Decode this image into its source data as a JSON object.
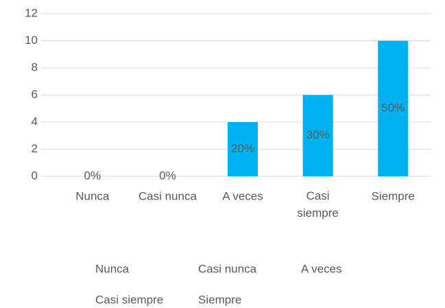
{
  "chart_data": {
    "type": "bar",
    "categories": [
      "Nunca",
      "Casi nunca",
      "A veces",
      "Casi siempre",
      "Siempre"
    ],
    "values": [
      0,
      0,
      4,
      6,
      10
    ],
    "value_labels": [
      "0%",
      "0%",
      "20%",
      "30%",
      "50%"
    ],
    "color": "#00b0f0",
    "ylim": [
      0,
      12
    ],
    "yticks": [
      0,
      2,
      4,
      6,
      8,
      10,
      12
    ],
    "grid": true,
    "legend": "bottom"
  }
}
